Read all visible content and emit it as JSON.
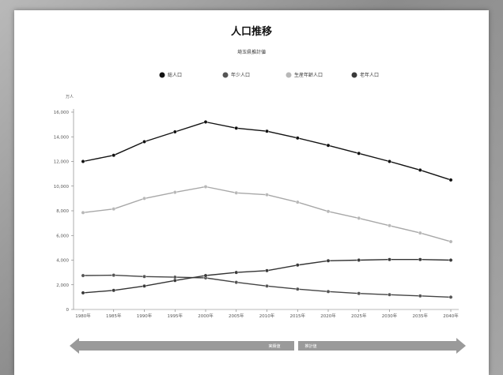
{
  "chart_data": {
    "type": "line",
    "title": "人口推移",
    "subtitle": "埼玉県推計値",
    "ylabel": "万人",
    "x": [
      "1980年",
      "1985年",
      "1990年",
      "1995年",
      "2000年",
      "2005年",
      "2010年",
      "2015年",
      "2020年",
      "2025年",
      "2030年",
      "2035年",
      "2040年"
    ],
    "y_ticks": [
      "0",
      "2,000",
      "4,000",
      "6,000",
      "8,000",
      "10,000",
      "12,000",
      "14,000",
      "16,000"
    ],
    "ylim": [
      0,
      16000
    ],
    "grid": false,
    "legend_position": "top",
    "series": [
      {
        "name": "総人口",
        "color": "#111111",
        "marker": "#111111",
        "values": [
          12000,
          12500,
          13600,
          14400,
          15200,
          14700,
          14450,
          13900,
          13300,
          12650,
          12000,
          11300,
          10500
        ]
      },
      {
        "name": "年少人口",
        "color": "#444444",
        "marker": "#555555",
        "values": [
          2750,
          2780,
          2670,
          2620,
          2560,
          2200,
          1900,
          1650,
          1450,
          1300,
          1200,
          1100,
          1000
        ]
      },
      {
        "name": "生産年齢人口",
        "color": "#a8a8a8",
        "marker": "#b8b8b8",
        "values": [
          7850,
          8150,
          9000,
          9500,
          9950,
          9450,
          9300,
          8700,
          7950,
          7400,
          6800,
          6200,
          5500
        ]
      },
      {
        "name": "老年人口",
        "color": "#333333",
        "marker": "#3a3a3a",
        "values": [
          1350,
          1550,
          1900,
          2350,
          2750,
          3000,
          3150,
          3600,
          3950,
          4000,
          4050,
          4050,
          4000
        ]
      }
    ],
    "period_labels": [
      "実績値",
      "推計値"
    ]
  }
}
